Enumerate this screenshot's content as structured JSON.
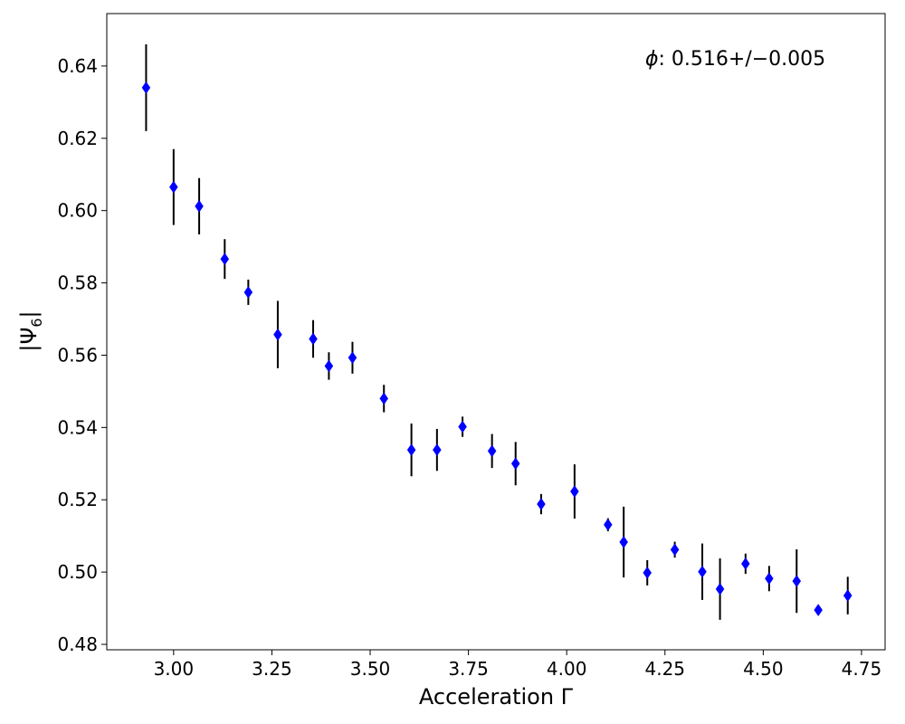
{
  "chart_data": {
    "type": "scatter",
    "title": "",
    "xlabel": "Acceleration Γ",
    "ylabel_main": "|Ψ",
    "ylabel_sub": "6",
    "ylabel_close": "|",
    "xlim": [
      2.83,
      4.81
    ],
    "ylim": [
      0.4785,
      0.6545
    ],
    "grid": false,
    "x_ticks": [
      3.0,
      3.25,
      3.5,
      3.75,
      4.0,
      4.25,
      4.5,
      4.75
    ],
    "x_tick_labels": [
      "3.00",
      "3.25",
      "3.50",
      "3.75",
      "4.00",
      "4.25",
      "4.50",
      "4.75"
    ],
    "y_ticks": [
      0.48,
      0.5,
      0.52,
      0.54,
      0.56,
      0.58,
      0.6,
      0.62,
      0.64
    ],
    "y_tick_labels": [
      "0.48",
      "0.50",
      "0.52",
      "0.54",
      "0.56",
      "0.58",
      "0.60",
      "0.62",
      "0.64"
    ],
    "annotation": {
      "symbol": "ϕ",
      "text": ": 0.516+/−0.005"
    },
    "marker_color": "#0000ff",
    "errorbar_color": "#000000",
    "points": [
      {
        "x": 2.93,
        "y": 0.634,
        "err": 0.012
      },
      {
        "x": 3.0,
        "y": 0.6065,
        "err": 0.0105
      },
      {
        "x": 3.065,
        "y": 0.6012,
        "err": 0.0078
      },
      {
        "x": 3.13,
        "y": 0.5866,
        "err": 0.0055
      },
      {
        "x": 3.19,
        "y": 0.5774,
        "err": 0.0035
      },
      {
        "x": 3.265,
        "y": 0.5657,
        "err": 0.0093
      },
      {
        "x": 3.355,
        "y": 0.5645,
        "err": 0.0052
      },
      {
        "x": 3.395,
        "y": 0.557,
        "err": 0.0038
      },
      {
        "x": 3.455,
        "y": 0.5593,
        "err": 0.0044
      },
      {
        "x": 3.535,
        "y": 0.548,
        "err": 0.0038
      },
      {
        "x": 3.605,
        "y": 0.5338,
        "err": 0.0073
      },
      {
        "x": 3.67,
        "y": 0.5338,
        "err": 0.0058
      },
      {
        "x": 3.735,
        "y": 0.5402,
        "err": 0.0028
      },
      {
        "x": 3.81,
        "y": 0.5335,
        "err": 0.0047
      },
      {
        "x": 3.87,
        "y": 0.53,
        "err": 0.006
      },
      {
        "x": 3.935,
        "y": 0.5188,
        "err": 0.0028
      },
      {
        "x": 4.02,
        "y": 0.5223,
        "err": 0.0075
      },
      {
        "x": 4.105,
        "y": 0.5131,
        "err": 0.0018
      },
      {
        "x": 4.145,
        "y": 0.5083,
        "err": 0.0098
      },
      {
        "x": 4.205,
        "y": 0.4998,
        "err": 0.0035
      },
      {
        "x": 4.275,
        "y": 0.5062,
        "err": 0.0022
      },
      {
        "x": 4.345,
        "y": 0.5001,
        "err": 0.0078
      },
      {
        "x": 4.39,
        "y": 0.4953,
        "err": 0.0085
      },
      {
        "x": 4.455,
        "y": 0.5023,
        "err": 0.0028
      },
      {
        "x": 4.515,
        "y": 0.4982,
        "err": 0.0035
      },
      {
        "x": 4.585,
        "y": 0.4975,
        "err": 0.0088
      },
      {
        "x": 4.64,
        "y": 0.4895,
        "err": 0.0012
      },
      {
        "x": 4.715,
        "y": 0.4935,
        "err": 0.0052
      }
    ]
  }
}
